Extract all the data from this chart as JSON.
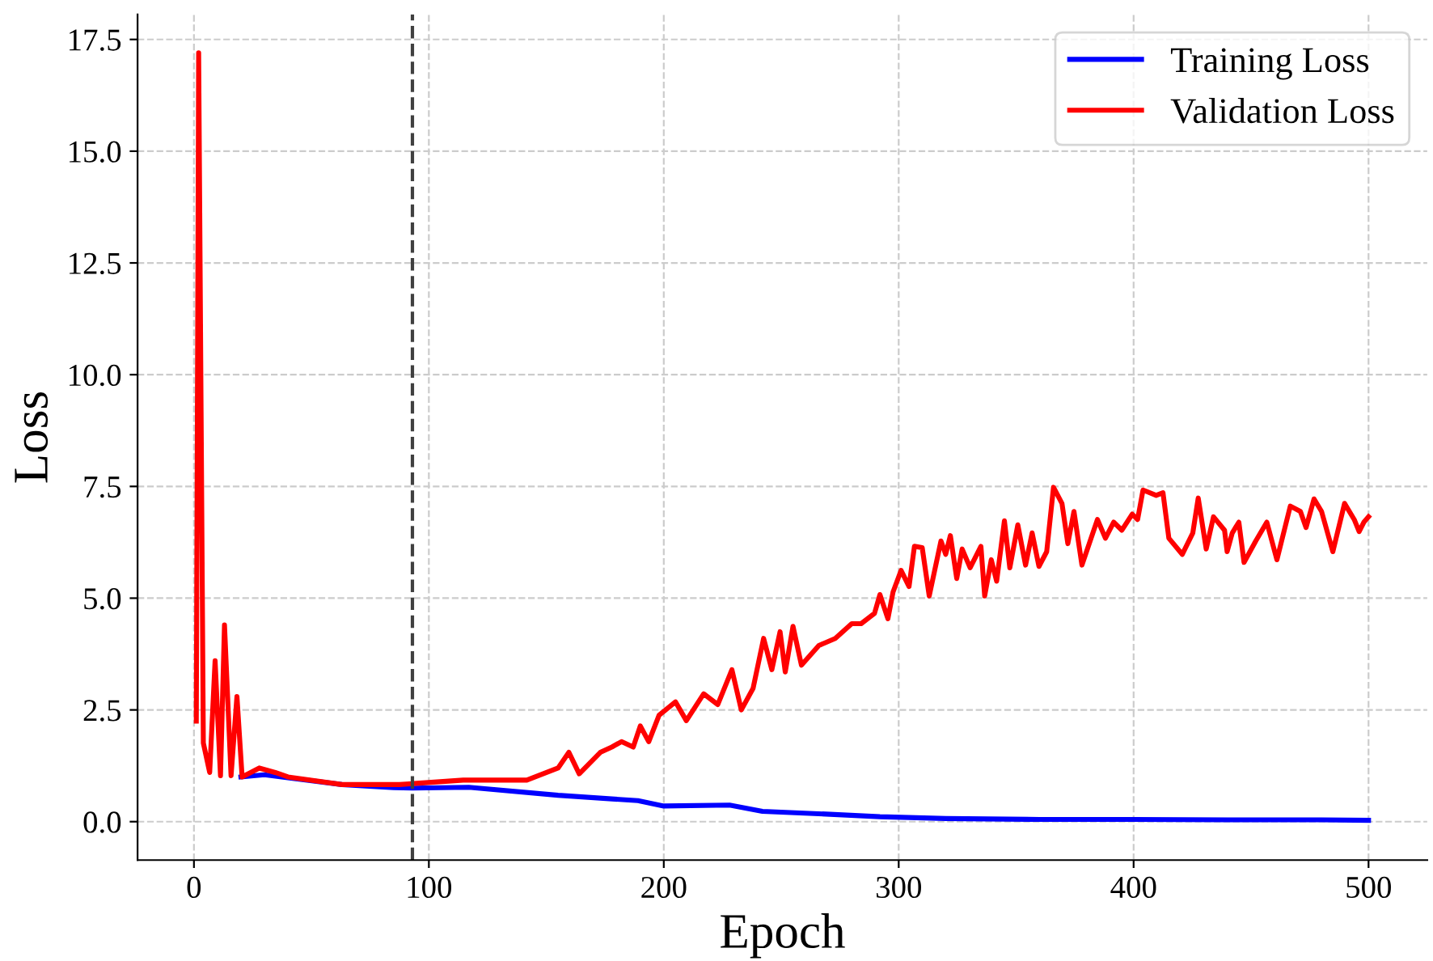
{
  "chart_data": {
    "type": "line",
    "xlabel": "Epoch",
    "ylabel": "Loss",
    "xlim": [
      -24,
      525
    ],
    "ylim": [
      -0.86,
      18.06
    ],
    "xticks": [
      0,
      100,
      200,
      300,
      400,
      500
    ],
    "yticks": [
      {
        "value": 0,
        "label": "0.0"
      },
      2.5,
      {
        "value": 5,
        "label": "5.0"
      },
      7.5,
      {
        "value": 10,
        "label": "10.0"
      },
      12.5,
      {
        "value": 15,
        "label": "15.0"
      },
      17.5
    ],
    "grid": true,
    "legend": "top right",
    "line_style": "solid",
    "marker": "none",
    "ref_lines": [
      {
        "axis": "x",
        "value": 93,
        "color": "#404040",
        "line_style": "dashed"
      }
    ],
    "series": [
      {
        "name": "Training Loss",
        "color": "#0000ff",
        "x": [
          20,
          30,
          40,
          63,
          85,
          93,
          117,
          155,
          189,
          200,
          228,
          242,
          269,
          292,
          320,
          360,
          400,
          440,
          480,
          500
        ],
        "values": [
          1.0,
          1.05,
          0.98,
          0.83,
          0.76,
          0.75,
          0.77,
          0.59,
          0.47,
          0.35,
          0.37,
          0.23,
          0.17,
          0.11,
          0.07,
          0.05,
          0.05,
          0.04,
          0.04,
          0.03
        ]
      },
      {
        "name": "Validation Loss",
        "color": "#ff0000",
        "x": [
          1,
          2,
          4,
          6.7,
          9,
          11.3,
          13,
          15.8,
          18.3,
          20.5,
          27.8,
          34.6,
          40,
          63,
          87.5,
          114.6,
          141.7,
          155,
          159.6,
          164,
          173,
          177.9,
          182,
          187,
          190,
          193.6,
          198,
          205,
          209.6,
          217,
          223,
          229,
          233,
          238,
          242.5,
          246,
          249.5,
          251.7,
          255,
          258.6,
          266,
          273,
          280,
          284,
          289.7,
          292,
          295.4,
          297.6,
          301,
          304.4,
          306.7,
          310,
          313,
          318,
          320,
          322,
          324.7,
          327,
          330.4,
          335,
          336.6,
          339.4,
          341.7,
          345,
          347.3,
          350.7,
          354,
          356.8,
          359.7,
          363,
          365.9,
          369.5,
          372,
          374.6,
          378,
          384.6,
          388,
          391.5,
          395,
          399.4,
          401.7,
          404,
          409.6,
          412.5,
          415,
          420.7,
          425.2,
          427.5,
          430.9,
          434,
          438.7,
          439.8,
          442,
          444.8,
          447,
          452,
          456.7,
          461,
          466.7,
          471,
          473.4,
          476.8,
          480,
          484.8,
          489.8,
          493.9,
          496,
          498,
          500
        ],
        "values": [
          2.25,
          17.2,
          1.76,
          1.1,
          3.6,
          1.03,
          4.4,
          1.03,
          2.8,
          1.0,
          1.2,
          1.1,
          1.0,
          0.83,
          0.83,
          0.93,
          0.93,
          1.2,
          1.55,
          1.07,
          1.55,
          1.67,
          1.79,
          1.67,
          2.14,
          1.79,
          2.38,
          2.68,
          2.26,
          2.86,
          2.62,
          3.4,
          2.5,
          2.98,
          4.1,
          3.4,
          4.25,
          3.35,
          4.37,
          3.5,
          3.94,
          4.1,
          4.43,
          4.43,
          4.66,
          5.08,
          4.54,
          5.14,
          5.62,
          5.26,
          6.16,
          6.13,
          5.05,
          6.28,
          5.98,
          6.4,
          5.44,
          6.1,
          5.68,
          6.16,
          5.05,
          5.86,
          5.38,
          6.73,
          5.68,
          6.64,
          5.74,
          6.46,
          5.71,
          6.04,
          7.48,
          7.12,
          6.22,
          6.94,
          5.74,
          6.76,
          6.34,
          6.7,
          6.52,
          6.88,
          6.76,
          7.42,
          7.3,
          7.36,
          6.34,
          5.98,
          6.46,
          7.24,
          6.1,
          6.82,
          6.52,
          6.04,
          6.46,
          6.7,
          5.8,
          6.28,
          6.7,
          5.86,
          7.06,
          6.94,
          6.58,
          7.22,
          6.94,
          6.04,
          7.12,
          6.76,
          6.49,
          6.7,
          6.82
        ]
      }
    ]
  }
}
